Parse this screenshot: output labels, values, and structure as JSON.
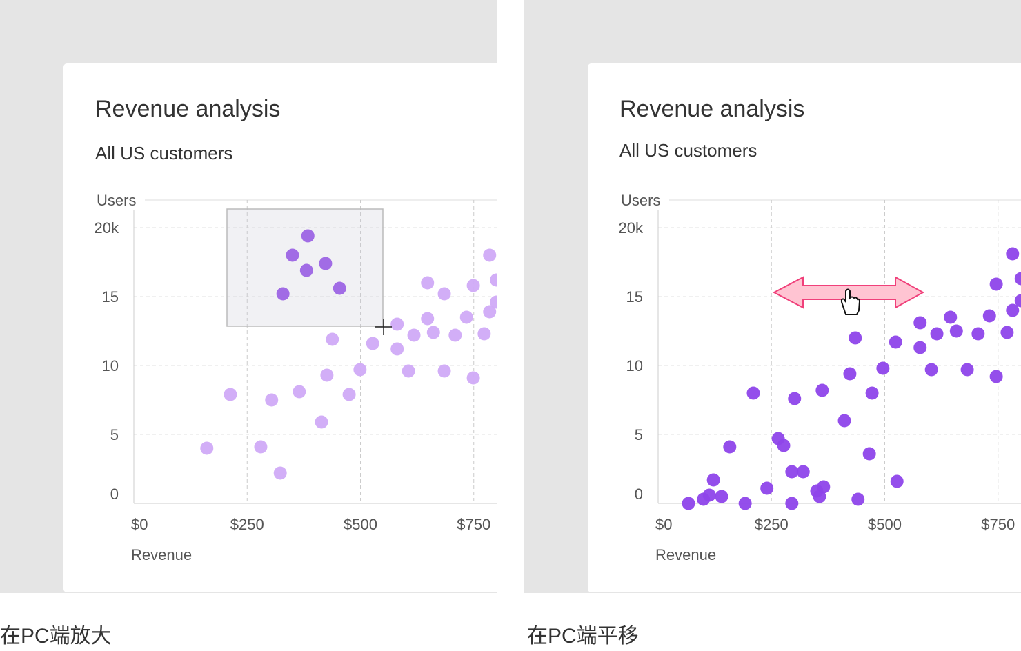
{
  "chart_data": [
    {
      "type": "scatter",
      "title": "Revenue analysis",
      "subtitle": "All US customers",
      "y_label": "Users",
      "x_label": "Revenue",
      "caption": "在PC端放大",
      "xlim": [
        0,
        800
      ],
      "ylim": [
        0,
        22
      ],
      "xticks": [
        {
          "value": 0,
          "label": "$0"
        },
        {
          "value": 250,
          "label": "$250"
        },
        {
          "value": 500,
          "label": "$500"
        },
        {
          "value": 750,
          "label": "$750"
        }
      ],
      "yticks": [
        {
          "value": 0,
          "label": "0"
        },
        5,
        10,
        15,
        {
          "value": 20,
          "label": "20k"
        }
      ],
      "grid": true,
      "series": [
        {
          "color": "#d0aaf7",
          "x": [
            161,
            213,
            280,
            304,
            323,
            365,
            414,
            426,
            438,
            475,
            499,
            527,
            581,
            581,
            606,
            618,
            648,
            648,
            661,
            685,
            685,
            709,
            734,
            749,
            749,
            773,
            785,
            785,
            800,
            800
          ],
          "values": [
            4.0,
            7.9,
            4.1,
            7.5,
            2.2,
            8.1,
            5.9,
            9.3,
            11.9,
            7.9,
            9.7,
            11.6,
            13.0,
            11.2,
            9.6,
            12.2,
            16.0,
            13.4,
            12.4,
            15.2,
            9.6,
            12.2,
            13.5,
            15.8,
            9.1,
            12.3,
            18.0,
            13.9,
            16.2,
            14.6
          ]
        },
        {
          "color": "#8e44ea",
          "x": [
            384,
            350,
            423,
            381,
            329,
            454
          ],
          "values": [
            19.4,
            18.0,
            17.4,
            16.9,
            15.2,
            15.6
          ]
        }
      ]
    },
    {
      "type": "scatter",
      "title": "Revenue analysis",
      "subtitle": "All US customers",
      "y_label": "Users",
      "x_label": "Revenue",
      "caption": "在PC端平移",
      "xlim": [
        0,
        800
      ],
      "ylim": [
        0,
        22
      ],
      "xticks": [
        {
          "value": 0,
          "label": "$0"
        },
        {
          "value": 250,
          "label": "$250"
        },
        {
          "value": 500,
          "label": "$500"
        },
        {
          "value": 750,
          "label": "$750"
        }
      ],
      "yticks": [
        {
          "value": 0,
          "label": "0"
        },
        5,
        10,
        15,
        {
          "value": 20,
          "label": "20k"
        }
      ],
      "grid": true,
      "series": [
        {
          "color": "#8e44ea",
          "x": [
            67,
            100,
            113,
            122,
            140,
            158,
            192,
            210,
            240,
            265,
            277,
            295,
            295,
            301,
            320,
            350,
            356,
            365,
            362,
            411,
            423,
            435,
            441,
            466,
            472,
            496,
            524,
            527,
            578,
            578,
            603,
            615,
            645,
            658,
            682,
            706,
            731,
            746,
            746,
            770,
            782,
            782,
            801,
            801
          ],
          "values": [
            0,
            0.3,
            0.6,
            1.7,
            0.5,
            4.1,
            0,
            8.0,
            1.1,
            4.7,
            4.2,
            2.3,
            0,
            7.6,
            2.3,
            0.9,
            0.5,
            1.2,
            8.2,
            6.0,
            9.4,
            12.0,
            0.3,
            3.6,
            8.0,
            9.8,
            11.7,
            1.6,
            13.1,
            11.3,
            9.7,
            12.3,
            13.5,
            12.5,
            9.7,
            12.3,
            13.6,
            15.9,
            9.2,
            12.4,
            18.1,
            14.0,
            16.3,
            14.7
          ]
        }
      ]
    }
  ]
}
